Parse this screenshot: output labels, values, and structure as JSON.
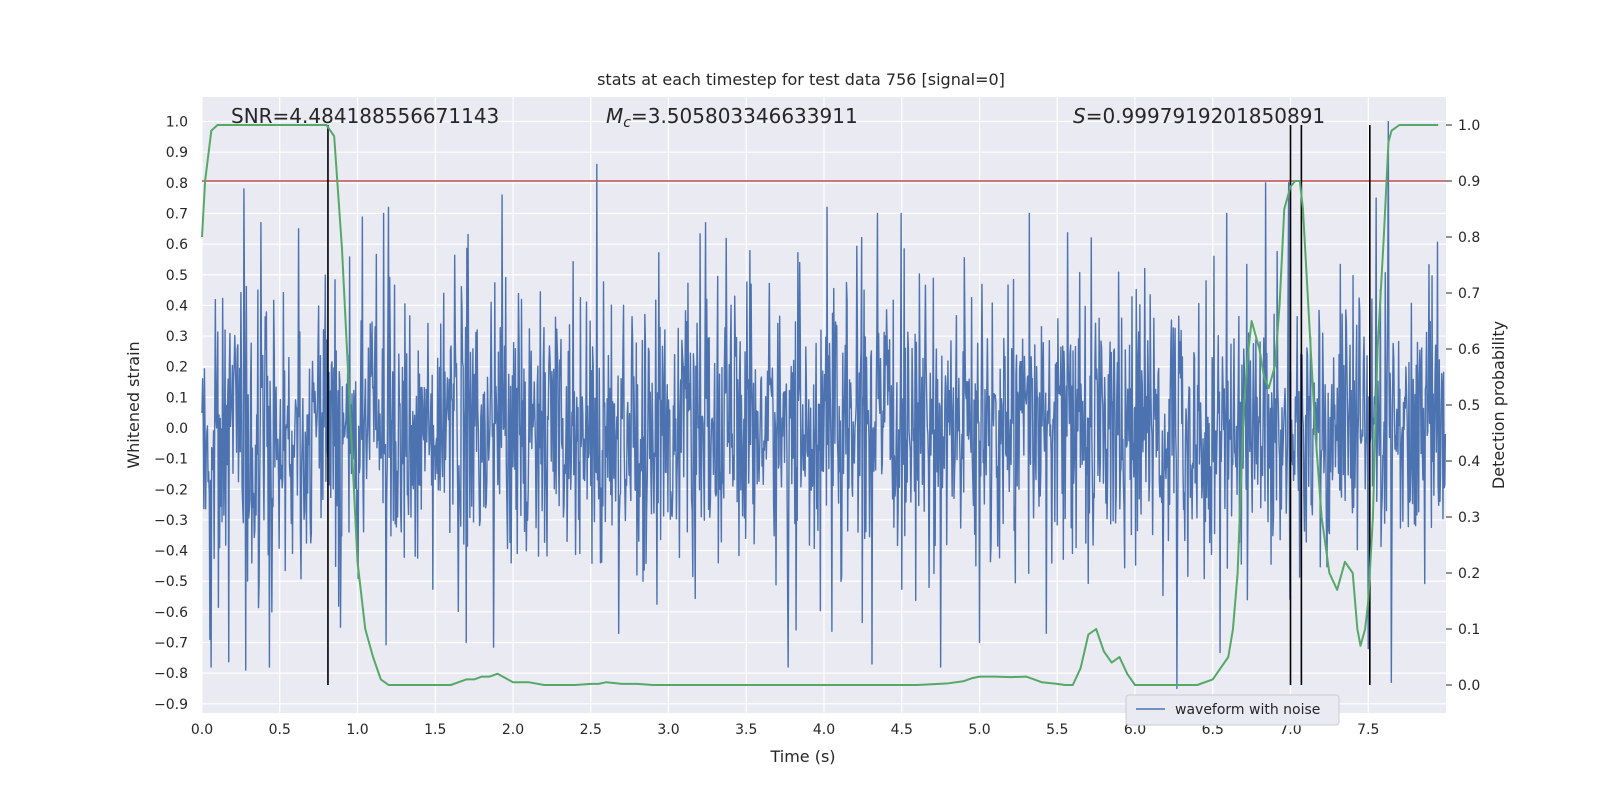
{
  "chart_data": {
    "type": "line",
    "title": "stats at each timestep for test data 756 [signal=0]",
    "xlabel": "Time (s)",
    "ylabel_left": "Whitened strain",
    "ylabel_right": "Detection probability",
    "xlim": [
      0.0,
      8.0
    ],
    "ylim_left": [
      -0.93,
      1.08
    ],
    "ylim_right": [
      -0.05,
      1.05
    ],
    "x_ticks": [
      0.0,
      0.5,
      1.0,
      1.5,
      2.0,
      2.5,
      3.0,
      3.5,
      4.0,
      4.5,
      5.0,
      5.5,
      6.0,
      6.5,
      7.0,
      7.5
    ],
    "x_tick_labels": [
      "0.0",
      "0.5",
      "1.0",
      "1.5",
      "2.0",
      "2.5",
      "3.0",
      "3.5",
      "4.0",
      "4.5",
      "5.0",
      "5.5",
      "6.0",
      "6.5",
      "7.0",
      "7.5"
    ],
    "y_left_ticks": [
      -0.9,
      -0.8,
      -0.7,
      -0.6,
      -0.5,
      -0.4,
      -0.3,
      -0.2,
      -0.1,
      0.0,
      0.1,
      0.2,
      0.3,
      0.4,
      0.5,
      0.6,
      0.7,
      0.8,
      0.9,
      1.0
    ],
    "y_left_tick_labels": [
      "−0.9",
      "−0.8",
      "−0.7",
      "−0.6",
      "−0.5",
      "−0.4",
      "−0.3",
      "−0.2",
      "−0.1",
      "0.0",
      "0.1",
      "0.2",
      "0.3",
      "0.4",
      "0.5",
      "0.6",
      "0.7",
      "0.8",
      "0.9",
      "1.0"
    ],
    "y_right_ticks": [
      0.0,
      0.1,
      0.2,
      0.3,
      0.4,
      0.5,
      0.6,
      0.7,
      0.8,
      0.9,
      1.0
    ],
    "y_right_tick_labels": [
      "0.0",
      "0.1",
      "0.2",
      "0.3",
      "0.4",
      "0.5",
      "0.6",
      "0.7",
      "0.8",
      "0.9",
      "1.0"
    ],
    "stats": {
      "snr_label": "SNR=4.484188556671143",
      "mc_symbol": "M",
      "mc_subscript": "c",
      "mc_value": "=3.505803346633911",
      "s_symbol": "S",
      "s_value": "=0.9997919201850891"
    },
    "threshold": 0.9,
    "threshold_color": "#c44e52",
    "vertical_markers_s": [
      0.81,
      7.0,
      7.07,
      7.51
    ],
    "waveform": {
      "name": "waveform with noise",
      "color": "#4c72b0",
      "n_samples": 2048,
      "noise_core_std": 0.21,
      "spikes": [
        {
          "t": 0.27,
          "v": 0.78
        },
        {
          "t": 0.28,
          "v": -0.79
        },
        {
          "t": 0.38,
          "v": 0.67
        },
        {
          "t": 0.45,
          "v": -0.6
        },
        {
          "t": 0.62,
          "v": 0.65
        },
        {
          "t": 0.89,
          "v": -0.65
        },
        {
          "t": 1.2,
          "v": 0.72
        },
        {
          "t": 1.7,
          "v": -0.7
        },
        {
          "t": 1.93,
          "v": 0.76
        },
        {
          "t": 2.54,
          "v": 0.86
        },
        {
          "t": 2.68,
          "v": -0.67
        },
        {
          "t": 4.02,
          "v": 0.72
        },
        {
          "t": 4.31,
          "v": -0.77
        },
        {
          "t": 5.0,
          "v": -0.7
        },
        {
          "t": 5.43,
          "v": -0.67
        },
        {
          "t": 5.72,
          "v": 0.62
        },
        {
          "t": 6.27,
          "v": 0.74
        },
        {
          "t": 6.27,
          "v": -0.85
        },
        {
          "t": 6.84,
          "v": 0.8
        },
        {
          "t": 6.99,
          "v": 0.8
        },
        {
          "t": 7.5,
          "v": -0.72
        },
        {
          "t": 7.55,
          "v": 0.75
        },
        {
          "t": 7.63,
          "v": 1.0
        },
        {
          "t": 7.65,
          "v": -0.83
        }
      ]
    },
    "detection_probability": {
      "color": "#55a868",
      "t": [
        0.0,
        0.02,
        0.06,
        0.1,
        0.2,
        0.3,
        0.4,
        0.5,
        0.6,
        0.7,
        0.75,
        0.8,
        0.85,
        0.9,
        0.95,
        1.0,
        1.05,
        1.1,
        1.15,
        1.2,
        1.3,
        1.4,
        1.5,
        1.55,
        1.6,
        1.65,
        1.7,
        1.75,
        1.8,
        1.85,
        1.9,
        2.0,
        2.1,
        2.2,
        2.3,
        2.4,
        2.5,
        2.55,
        2.6,
        2.7,
        2.8,
        2.9,
        3.0,
        3.2,
        3.4,
        3.6,
        3.8,
        4.0,
        4.2,
        4.4,
        4.6,
        4.8,
        4.9,
        4.95,
        5.0,
        5.1,
        5.2,
        5.3,
        5.4,
        5.5,
        5.55,
        5.6,
        5.65,
        5.7,
        5.75,
        5.8,
        5.85,
        5.9,
        5.95,
        6.0,
        6.05,
        6.1,
        6.15,
        6.2,
        6.3,
        6.4,
        6.5,
        6.55,
        6.6,
        6.63,
        6.66,
        6.7,
        6.73,
        6.75,
        6.8,
        6.83,
        6.86,
        6.9,
        6.93,
        6.96,
        7.0,
        7.03,
        7.06,
        7.08,
        7.1,
        7.13,
        7.16,
        7.2,
        7.25,
        7.3,
        7.35,
        7.4,
        7.43,
        7.45,
        7.48,
        7.5,
        7.53,
        7.56,
        7.6,
        7.63,
        7.65,
        7.7,
        7.8,
        7.9,
        7.95
      ],
      "p": [
        0.8,
        0.9,
        0.99,
        1.0,
        1.0,
        1.0,
        1.0,
        1.0,
        1.0,
        1.0,
        1.0,
        1.0,
        0.98,
        0.78,
        0.5,
        0.22,
        0.1,
        0.05,
        0.01,
        0.0,
        0.0,
        0.0,
        0.0,
        0.0,
        0.0,
        0.005,
        0.01,
        0.01,
        0.015,
        0.015,
        0.02,
        0.005,
        0.005,
        0.0,
        0.0,
        0.0,
        0.002,
        0.002,
        0.005,
        0.002,
        0.002,
        0.0,
        0.0,
        0.0,
        0.0,
        0.0,
        0.0,
        0.0,
        0.0,
        0.0,
        0.0,
        0.003,
        0.007,
        0.012,
        0.015,
        0.015,
        0.014,
        0.015,
        0.005,
        0.002,
        0.0,
        0.0,
        0.03,
        0.09,
        0.1,
        0.06,
        0.04,
        0.05,
        0.02,
        0.0,
        0.0,
        0.0,
        0.0,
        0.0,
        0.0,
        0.0,
        0.01,
        0.03,
        0.05,
        0.1,
        0.2,
        0.5,
        0.6,
        0.65,
        0.6,
        0.55,
        0.53,
        0.57,
        0.68,
        0.85,
        0.89,
        0.9,
        0.9,
        0.85,
        0.75,
        0.6,
        0.45,
        0.3,
        0.2,
        0.17,
        0.22,
        0.2,
        0.1,
        0.07,
        0.1,
        0.15,
        0.3,
        0.6,
        0.8,
        0.97,
        0.99,
        1.0,
        1.0,
        1.0,
        1.0
      ]
    }
  }
}
